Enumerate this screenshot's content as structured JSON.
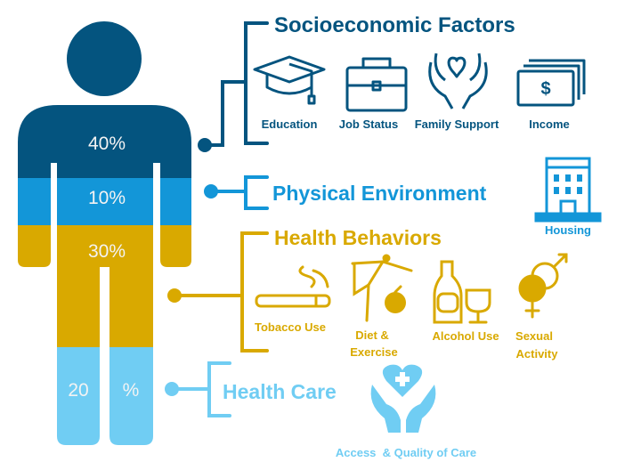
{
  "colors": {
    "socio": "#04547f",
    "physical": "#1396d8",
    "behaviors": "#d9a900",
    "care": "#70cdf3"
  },
  "figure": {
    "socio_pct": "40%",
    "physical_pct": "10%",
    "behaviors_pct": "30%",
    "care_pct_num": "20",
    "care_pct_sign": "%"
  },
  "socioeconomic": {
    "title": "Socioeconomic Factors",
    "items": [
      {
        "label": "Education",
        "icon": "graduation-cap-icon"
      },
      {
        "label": "Job Status",
        "icon": "briefcase-icon"
      },
      {
        "label": "Family Support",
        "icon": "hands-heart-icon"
      },
      {
        "label": "Income",
        "icon": "money-icon"
      }
    ]
  },
  "physical": {
    "title": "Physical Environment",
    "items": [
      {
        "label": "Housing",
        "icon": "building-icon"
      }
    ]
  },
  "behaviors": {
    "title": "Health Behaviors",
    "items": [
      {
        "label": "Tobacco Use",
        "icon": "cigarette-icon"
      },
      {
        "label_line1": "Diet &",
        "label_line2": "Exercise",
        "icon": "exercise-apple-icon"
      },
      {
        "label": "Alcohol Use",
        "icon": "bottle-glass-icon"
      },
      {
        "label_line1": "Sexual",
        "label_line2": "Activity",
        "icon": "gender-rings-icon"
      }
    ]
  },
  "care": {
    "title": "Health Care",
    "items": [
      {
        "label": "Access  & Quality of Care",
        "icon": "hands-heart-cross-icon"
      }
    ]
  }
}
